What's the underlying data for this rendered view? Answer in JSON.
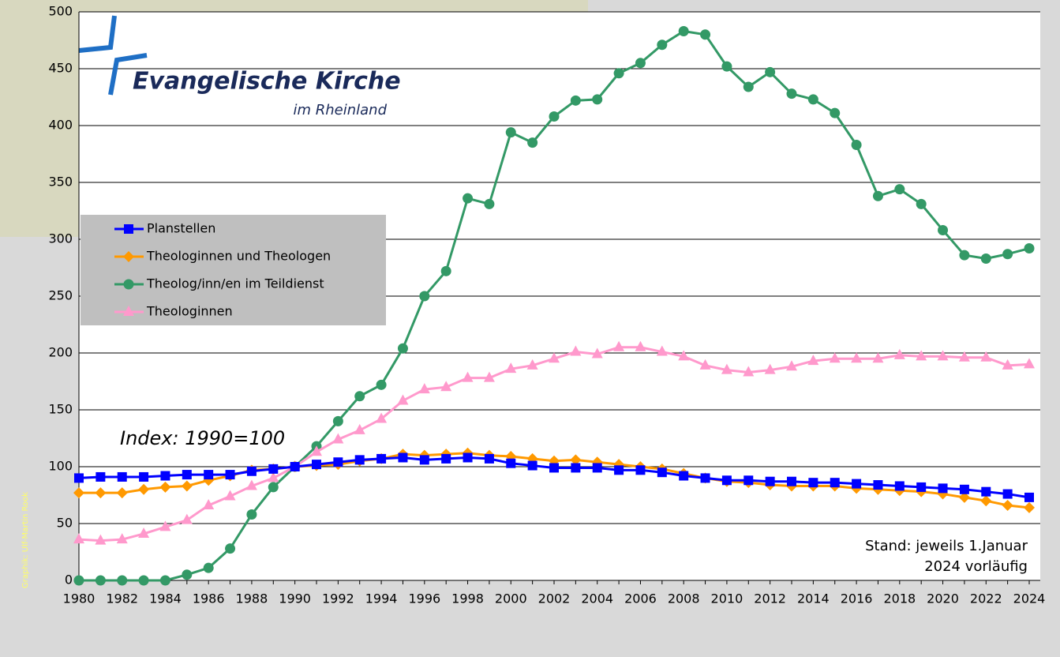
{
  "chart_data": {
    "type": "line",
    "logo": {
      "name": "Evangelische Kirche",
      "region": "im Rheinland"
    },
    "annotations": [
      "Index: 1990=100",
      "Stand: jeweils 1.Januar",
      "2024 vorläufig"
    ],
    "credit": "Graphik: Ulf-Martin Rook",
    "categories": [
      "1980",
      null,
      "1982",
      null,
      "1984",
      null,
      "1986",
      null,
      "1988",
      null,
      "1990",
      null,
      "1992",
      null,
      "1994",
      null,
      "1996",
      null,
      "1998",
      null,
      "2000",
      null,
      "2002",
      null,
      "2004",
      null,
      "2006",
      null,
      "2008",
      null,
      "2010",
      null,
      "2012",
      null,
      "2014",
      null,
      "2016",
      null,
      "2018",
      null,
      "2020",
      null,
      "2022",
      null,
      "2024"
    ],
    "ylim": [
      0,
      500
    ],
    "yticks": [
      0,
      50,
      100,
      150,
      200,
      250,
      300,
      350,
      400,
      450,
      500
    ],
    "grid": true,
    "legend": "upper left",
    "series": [
      {
        "name": "Planstellen",
        "color": "#0000ff",
        "marker": "square",
        "values": [
          90,
          91,
          91,
          91,
          92,
          93,
          93,
          93,
          96,
          98,
          100,
          102,
          104,
          106,
          107,
          108,
          106,
          107,
          108,
          107,
          103,
          101,
          99,
          99,
          99,
          97,
          97,
          95,
          92,
          90,
          88,
          88,
          87,
          87,
          86,
          86,
          85,
          84,
          83,
          82,
          81,
          80,
          78,
          76,
          73
        ]
      },
      {
        "name": "Theologinnen und Theologen",
        "color": "#ff9900",
        "marker": "diamond",
        "values": [
          77,
          77,
          77,
          80,
          82,
          83,
          88,
          92,
          97,
          98,
          100,
          101,
          102,
          105,
          107,
          111,
          110,
          111,
          112,
          110,
          109,
          107,
          105,
          106,
          104,
          102,
          100,
          98,
          94,
          90,
          87,
          86,
          84,
          83,
          83,
          83,
          81,
          80,
          79,
          78,
          76,
          73,
          70,
          66,
          64
        ]
      },
      {
        "name": "Theolog/inn/en im Teildienst",
        "color": "#339966",
        "marker": "circle",
        "values": [
          0,
          0,
          0,
          0,
          0,
          5,
          11,
          28,
          58,
          82,
          100,
          118,
          140,
          162,
          172,
          204,
          250,
          272,
          336,
          331,
          394,
          385,
          408,
          422,
          423,
          446,
          455,
          471,
          483,
          480,
          452,
          434,
          447,
          428,
          423,
          411,
          383,
          338,
          344,
          331,
          308,
          286,
          283,
          287,
          292
        ]
      },
      {
        "name": "Theologinnen",
        "color": "#ff99cc",
        "marker": "triangle",
        "values": [
          36,
          35,
          36,
          41,
          47,
          53,
          66,
          74,
          83,
          90,
          100,
          113,
          124,
          132,
          142,
          158,
          168,
          170,
          178,
          178,
          186,
          189,
          195,
          201,
          199,
          205,
          205,
          201,
          197,
          189,
          185,
          183,
          185,
          188,
          193,
          195,
          195,
          195,
          198,
          197,
          197,
          196,
          196,
          189,
          190
        ]
      }
    ]
  }
}
